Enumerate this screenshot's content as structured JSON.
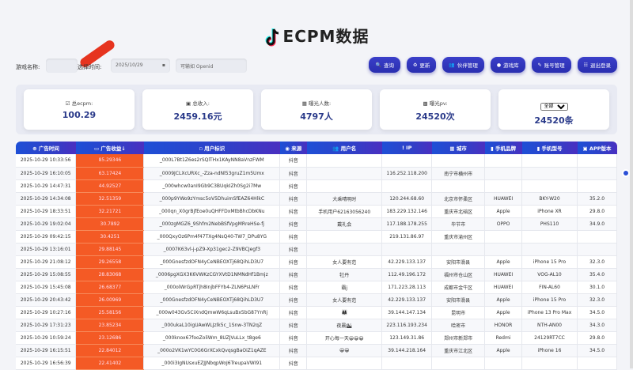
{
  "title": "ECPM数据",
  "filter": {
    "game_label": "游戏名称:",
    "time_label": "选择时间:",
    "date_value": "2025/10/29",
    "openid_placeholder": "可输如 Openid"
  },
  "buttons": [
    {
      "label": "查询",
      "icon": "search-icon"
    },
    {
      "label": "更新",
      "icon": "refresh-icon"
    },
    {
      "label": "伙伴管理",
      "icon": "partner-icon"
    },
    {
      "label": "游戏库",
      "icon": "game-icon"
    },
    {
      "label": "账号管理",
      "icon": "account-icon"
    },
    {
      "label": "退出登录",
      "icon": "logout-icon"
    }
  ],
  "stats": [
    {
      "label": "总ecpm:",
      "value": "100.29",
      "icon": "ecpm-icon"
    },
    {
      "label": "总收入:",
      "value": "2459.16元",
      "icon": "income-icon"
    },
    {
      "label": "曝光人数:",
      "value": "4797人",
      "icon": "users-icon"
    },
    {
      "label": "曝光pv:",
      "value": "24520次",
      "icon": "pv-icon"
    },
    {
      "select": "全部",
      "value": "24520条"
    }
  ],
  "table": {
    "headers": [
      "广告时间",
      "广告收益↓",
      "用户标识",
      "来源",
      "用户名",
      "IP",
      "城市",
      "手机品牌",
      "手机型号",
      "APP版本"
    ],
    "rows": [
      [
        "2025-10-29 10:33:56",
        "85.29346",
        "_000L7Bt1Z6es2rSQlTHx1KAyNN8aVnzFWM",
        "抖音",
        "",
        "",
        "",
        "",
        "",
        ""
      ],
      [
        "2025-10-29 16:10:05",
        "63.17424",
        "_0009JCLXcURXc_-Zza-ndNl53gruZ1m5Umx",
        "抖音",
        "",
        "116.252.118.200",
        "南宁市横州市",
        "",
        "",
        ""
      ],
      [
        "2025-10-29 14:47:31",
        "44.92527",
        "_000whcw0anI9Gb9C3BUqkIZh0Sg2i7Mw",
        "抖音",
        "",
        "",
        "",
        "",
        "",
        ""
      ],
      [
        "2025-10-29 14:34:08",
        "32.51359",
        "_000p9YWo9zYmsc5oV5DhuimSfEAZ64HlkC",
        "抖音",
        "大乘晴明时",
        "120.244.68.60",
        "北京市怀柔区",
        "HUAWEI",
        "BKY-W20",
        "35.2.0"
      ],
      [
        "2025-10-29 18:33:51",
        "32.21721",
        "_000qn_X0grBjfEoe0uQHFFDxMtbBhcDbKNu",
        "抖音",
        "手机用户62163056240",
        "183.229.132.146",
        "重庆市北碚区",
        "Apple",
        "iPhone XR",
        "29.8.0"
      ],
      [
        "2025-10-29 19:02:04",
        "30.7892",
        "_000zgMGZ6_9Shfm2NebBSfVpgMRreHSe-fj",
        "抖音",
        "戴礼会",
        "117.188.178.255",
        "毕节市",
        "OPPO",
        "PHS110",
        "34.9.0"
      ],
      [
        "2025-10-29 09:42:15",
        "30.4251",
        "_000QxyOz6Pm4f47TXg4NsQ40-TW7_DPu8YG",
        "抖音",
        "",
        "219.131.86.97",
        "重庆市渝州区",
        "",
        "",
        ""
      ],
      [
        "2025-10-29 13:16:01",
        "29.88145",
        "_0007K63vl-j-pZ9-Xp31gec2-Z9VBCJegf3",
        "抖音",
        "",
        "",
        "",
        "",
        "",
        ""
      ],
      [
        "2025-10-29 21:08:12",
        "29.26558",
        "_000GnesfzdOFN4yCeNBEOXTj68QihLD3U7",
        "抖音",
        "女人要有范",
        "42.229.133.137",
        "安阳市滑县",
        "Apple",
        "iPhone 15 Pro",
        "32.3.0"
      ],
      [
        "2025-10-29 15:08:55",
        "28.83068",
        "_0006pgXGX3K6VWKzCGYXVtD1NMNdHf1Bmjz",
        "抖音",
        "牡丹",
        "112.49.196.172",
        "福州市仓山区",
        "HUAWEI",
        "VOG-AL10",
        "35.4.0"
      ],
      [
        "2025-10-29 15:45:08",
        "26.68377",
        "_000olWrGpRTjh8InjbFFYb4-ZLN6PsLNFr",
        "抖音",
        "霸j",
        "171.223.28.113",
        "成都市金牛区",
        "HUAWEI",
        "FIN-AL60",
        "30.1.0"
      ],
      [
        "2025-10-29 20:43:42",
        "26.00969",
        "_000GnesfzdOFN4yCeNBEOXTj68QihLD3U7",
        "抖音",
        "女人要有范",
        "42.229.133.137",
        "安阳市滑县",
        "Apple",
        "iPhone 15 Pro",
        "32.3.0"
      ],
      [
        "2025-10-29 10:27:16",
        "25.58156",
        "_000w043Gv5CiXndQmwW6qLsuBx5bG87YnRj",
        "抖音",
        "👨‍👩‍👧",
        "39.144.147.134",
        "昆明市",
        "Apple",
        "iPhone 13 Pro Max",
        "34.5.0"
      ],
      [
        "2025-10-29 17:31:23",
        "23.85234",
        "_000ukaL10igUAwWLJzlk5c_1Snw-3TN2qZ",
        "抖音",
        "夜晨🏙",
        "223.116.193.234",
        "哈密市",
        "HONOR",
        "NTH-AN00",
        "34.3.0"
      ],
      [
        "2025-10-29 10:59:24",
        "23.12686",
        "_000knox67fooZoliWm_8UZJVuLLx_t8ge6",
        "抖音",
        "开心每一天😀😀😀",
        "123.149.31.86",
        "郑州市新郑市",
        "Redmi",
        "24129RT7CC",
        "29.8.0"
      ],
      [
        "2025-10-29 16:15:51",
        "22.84012",
        "_000o2VK1wYC0G6GrXCxkQvqsgBaOiZ1qAZE",
        "抖音",
        "😀😀",
        "39.144.218.164",
        "重庆市江北区",
        "Apple",
        "iPhone 16",
        "34.5.0"
      ],
      [
        "2025-10-29 16:56:39",
        "22.41402",
        "_000i3IgNUsxuEZJJNbqpWoJ6TreupaVWI91",
        "抖音",
        "",
        "",
        "",
        "",
        "",
        ""
      ]
    ]
  },
  "colors": {
    "primary": "#2a2fb0",
    "revenue": "#f45a25"
  }
}
